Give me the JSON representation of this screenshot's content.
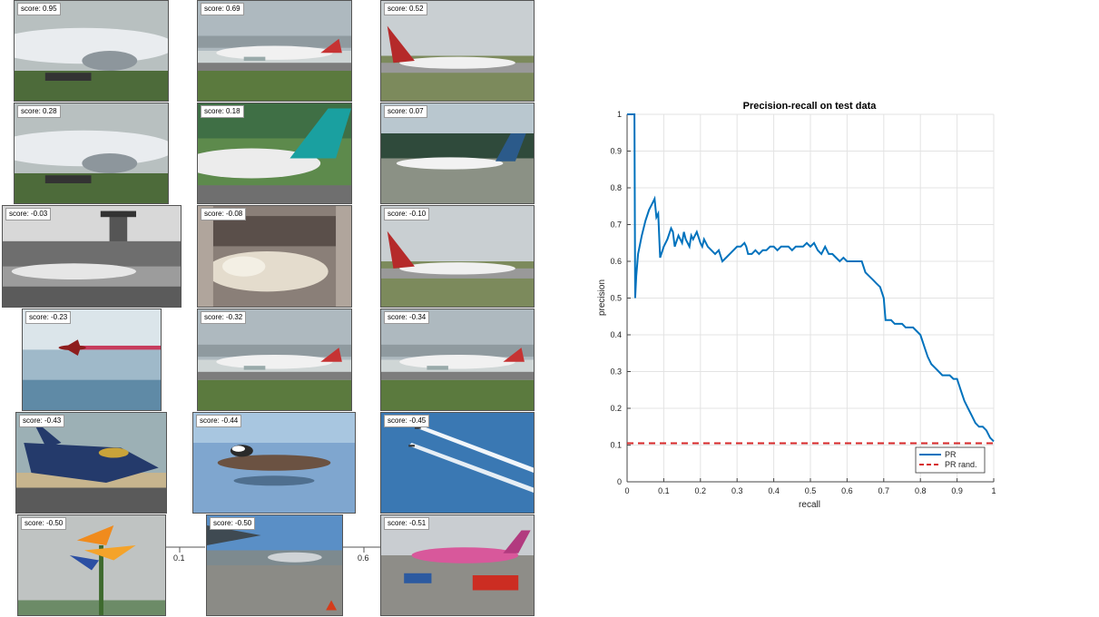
{
  "tiles": [
    {
      "score": "score: 0.95",
      "scene": "jet-closeup"
    },
    {
      "score": "score: 0.69",
      "scene": "airliner-runway"
    },
    {
      "score": "score: 0.52",
      "scene": "airliner-taxi"
    },
    {
      "score": "score: 0.28",
      "scene": "jet-closeup"
    },
    {
      "score": "score: 0.18",
      "scene": "tail-closeup"
    },
    {
      "score": "score: 0.07",
      "scene": "airliner-forest"
    },
    {
      "score": "score: -0.03",
      "scene": "bw-airport"
    },
    {
      "score": "score: -0.08",
      "scene": "cat-bed"
    },
    {
      "score": "score: -0.10",
      "scene": "airliner-taxi"
    },
    {
      "score": "score: -0.23",
      "scene": "jet-sky-trail"
    },
    {
      "score": "score: -0.32",
      "scene": "airliner-runway"
    },
    {
      "score": "score: -0.34",
      "scene": "airliner-runway"
    },
    {
      "score": "score: -0.43",
      "scene": "fighter-jet"
    },
    {
      "score": "score: -0.44",
      "scene": "duck-water"
    },
    {
      "score": "score: -0.45",
      "scene": "contrails-sky"
    },
    {
      "score": "score: -0.50",
      "scene": "flower"
    },
    {
      "score": "score: -0.50",
      "scene": "airport-tarmac"
    },
    {
      "score": "score: -0.51",
      "scene": "pink-airliner"
    }
  ],
  "fragment_ticks": [
    "0.1",
    "0.6"
  ],
  "chart_data": {
    "type": "line",
    "title": "Precision-recall on test data",
    "xlabel": "recall",
    "ylabel": "precision",
    "xlim": [
      0,
      1
    ],
    "ylim": [
      0,
      1
    ],
    "xticks": [
      "0",
      "0.1",
      "0.2",
      "0.3",
      "0.4",
      "0.5",
      "0.6",
      "0.7",
      "0.8",
      "0.9",
      "1"
    ],
    "yticks": [
      "0",
      "0.1",
      "0.2",
      "0.3",
      "0.4",
      "0.5",
      "0.6",
      "0.7",
      "0.8",
      "0.9",
      "1"
    ],
    "grid": true,
    "legend_position": "bottom-right",
    "series": [
      {
        "name": "PR",
        "color": "#0072BD",
        "style": "solid",
        "x": [
          0,
          0.005,
          0.01,
          0.015,
          0.02,
          0.022,
          0.025,
          0.03,
          0.04,
          0.05,
          0.06,
          0.07,
          0.075,
          0.08,
          0.085,
          0.09,
          0.1,
          0.11,
          0.12,
          0.125,
          0.13,
          0.14,
          0.15,
          0.155,
          0.16,
          0.17,
          0.175,
          0.18,
          0.19,
          0.2,
          0.205,
          0.21,
          0.22,
          0.23,
          0.24,
          0.25,
          0.26,
          0.27,
          0.28,
          0.29,
          0.3,
          0.31,
          0.32,
          0.325,
          0.33,
          0.34,
          0.35,
          0.36,
          0.37,
          0.38,
          0.39,
          0.4,
          0.41,
          0.42,
          0.43,
          0.44,
          0.45,
          0.46,
          0.47,
          0.48,
          0.49,
          0.5,
          0.51,
          0.52,
          0.53,
          0.54,
          0.55,
          0.56,
          0.57,
          0.58,
          0.59,
          0.6,
          0.61,
          0.62,
          0.63,
          0.64,
          0.65,
          0.66,
          0.67,
          0.68,
          0.69,
          0.7,
          0.705,
          0.71,
          0.72,
          0.73,
          0.74,
          0.75,
          0.76,
          0.77,
          0.78,
          0.79,
          0.8,
          0.81,
          0.82,
          0.83,
          0.84,
          0.85,
          0.86,
          0.87,
          0.88,
          0.89,
          0.9,
          0.91,
          0.92,
          0.93,
          0.94,
          0.95,
          0.96,
          0.97,
          0.98,
          0.99,
          1
        ],
        "y": [
          1,
          1,
          1,
          1,
          1,
          0.5,
          0.56,
          0.62,
          0.67,
          0.71,
          0.74,
          0.76,
          0.77,
          0.72,
          0.73,
          0.61,
          0.64,
          0.66,
          0.69,
          0.68,
          0.64,
          0.67,
          0.65,
          0.68,
          0.66,
          0.64,
          0.67,
          0.66,
          0.68,
          0.65,
          0.64,
          0.66,
          0.64,
          0.63,
          0.62,
          0.63,
          0.6,
          0.61,
          0.62,
          0.63,
          0.64,
          0.64,
          0.65,
          0.64,
          0.62,
          0.62,
          0.63,
          0.62,
          0.63,
          0.63,
          0.64,
          0.64,
          0.63,
          0.64,
          0.64,
          0.64,
          0.63,
          0.64,
          0.64,
          0.64,
          0.65,
          0.64,
          0.65,
          0.63,
          0.62,
          0.64,
          0.62,
          0.62,
          0.61,
          0.6,
          0.61,
          0.6,
          0.6,
          0.6,
          0.6,
          0.6,
          0.57,
          0.56,
          0.55,
          0.54,
          0.53,
          0.5,
          0.44,
          0.44,
          0.44,
          0.43,
          0.43,
          0.43,
          0.42,
          0.42,
          0.42,
          0.41,
          0.4,
          0.37,
          0.34,
          0.32,
          0.31,
          0.3,
          0.29,
          0.29,
          0.29,
          0.28,
          0.28,
          0.25,
          0.22,
          0.2,
          0.18,
          0.16,
          0.15,
          0.15,
          0.14,
          0.12,
          0.11
        ]
      },
      {
        "name": "PR rand.",
        "color": "#D62728",
        "style": "dashed",
        "x": [
          0,
          1
        ],
        "y": [
          0.105,
          0.105
        ]
      }
    ]
  }
}
